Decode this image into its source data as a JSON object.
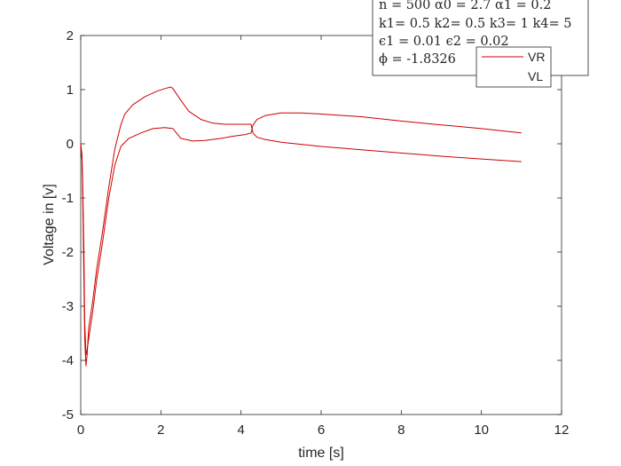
{
  "chart_data": {
    "type": "line",
    "xlabel": "time [s]",
    "ylabel": "Voltage in [v]",
    "xlim": [
      0,
      12
    ],
    "ylim": [
      -5,
      2
    ],
    "xticks": [
      "0",
      "2",
      "4",
      "6",
      "8",
      "10",
      "12"
    ],
    "yticks": [
      "-5",
      "-4",
      "-3",
      "-2",
      "-1",
      "0",
      "1",
      "2"
    ],
    "grid": false,
    "legend_position": "top-right",
    "line_color": "#cc0000",
    "annotation_lines": [
      "n = 500 α0 =  2.7 α1 =  0.2",
      "k1= 0.5 k2= 0.5 k3= 1 k4= 5",
      "ϵ1 =  0.01 ϵ2 =  0.02",
      "ϕ =  -1.8326"
    ],
    "series": [
      {
        "name": "VR",
        "x": [
          0,
          0.03,
          0.05,
          0.08,
          0.1,
          0.13,
          0.16,
          0.2,
          0.3,
          0.4,
          0.55,
          0.7,
          0.85,
          1.0,
          1.1,
          1.3,
          1.6,
          1.9,
          2.1,
          2.25,
          2.3,
          2.5,
          2.7,
          3.0,
          3.3,
          3.6,
          4.0,
          4.25,
          4.3,
          4.4,
          4.6,
          5.0,
          6.0,
          7.0,
          8.0,
          9.0,
          10.0,
          11.0
        ],
        "values": [
          0.0,
          -0.3,
          -1.0,
          -2.5,
          -3.6,
          -4.1,
          -3.9,
          -3.4,
          -2.9,
          -2.3,
          -1.6,
          -0.8,
          -0.1,
          0.35,
          0.55,
          0.72,
          0.87,
          0.97,
          1.02,
          1.05,
          1.02,
          0.8,
          0.6,
          0.45,
          0.38,
          0.36,
          0.36,
          0.36,
          0.2,
          0.12,
          0.08,
          0.03,
          -0.05,
          -0.11,
          -0.17,
          -0.23,
          -0.28,
          -0.33
        ]
      },
      {
        "name": "VL",
        "x": [
          0,
          0.03,
          0.05,
          0.08,
          0.1,
          0.13,
          0.16,
          0.2,
          0.3,
          0.4,
          0.55,
          0.7,
          0.85,
          1.0,
          1.2,
          1.5,
          1.8,
          2.1,
          2.3,
          2.5,
          2.8,
          3.1,
          3.5,
          3.8,
          4.1,
          4.25,
          4.3,
          4.4,
          4.6,
          5.0,
          5.5,
          6.0,
          7.0,
          8.0,
          9.0,
          10.0,
          11.0
        ],
        "values": [
          0.0,
          -0.2,
          -0.8,
          -2.0,
          -3.3,
          -3.9,
          -3.8,
          -3.6,
          -3.1,
          -2.5,
          -1.8,
          -1.0,
          -0.4,
          -0.05,
          0.1,
          0.2,
          0.28,
          0.3,
          0.28,
          0.1,
          0.05,
          0.06,
          0.1,
          0.14,
          0.17,
          0.2,
          0.35,
          0.45,
          0.52,
          0.57,
          0.57,
          0.55,
          0.5,
          0.42,
          0.35,
          0.28,
          0.2
        ]
      }
    ]
  }
}
